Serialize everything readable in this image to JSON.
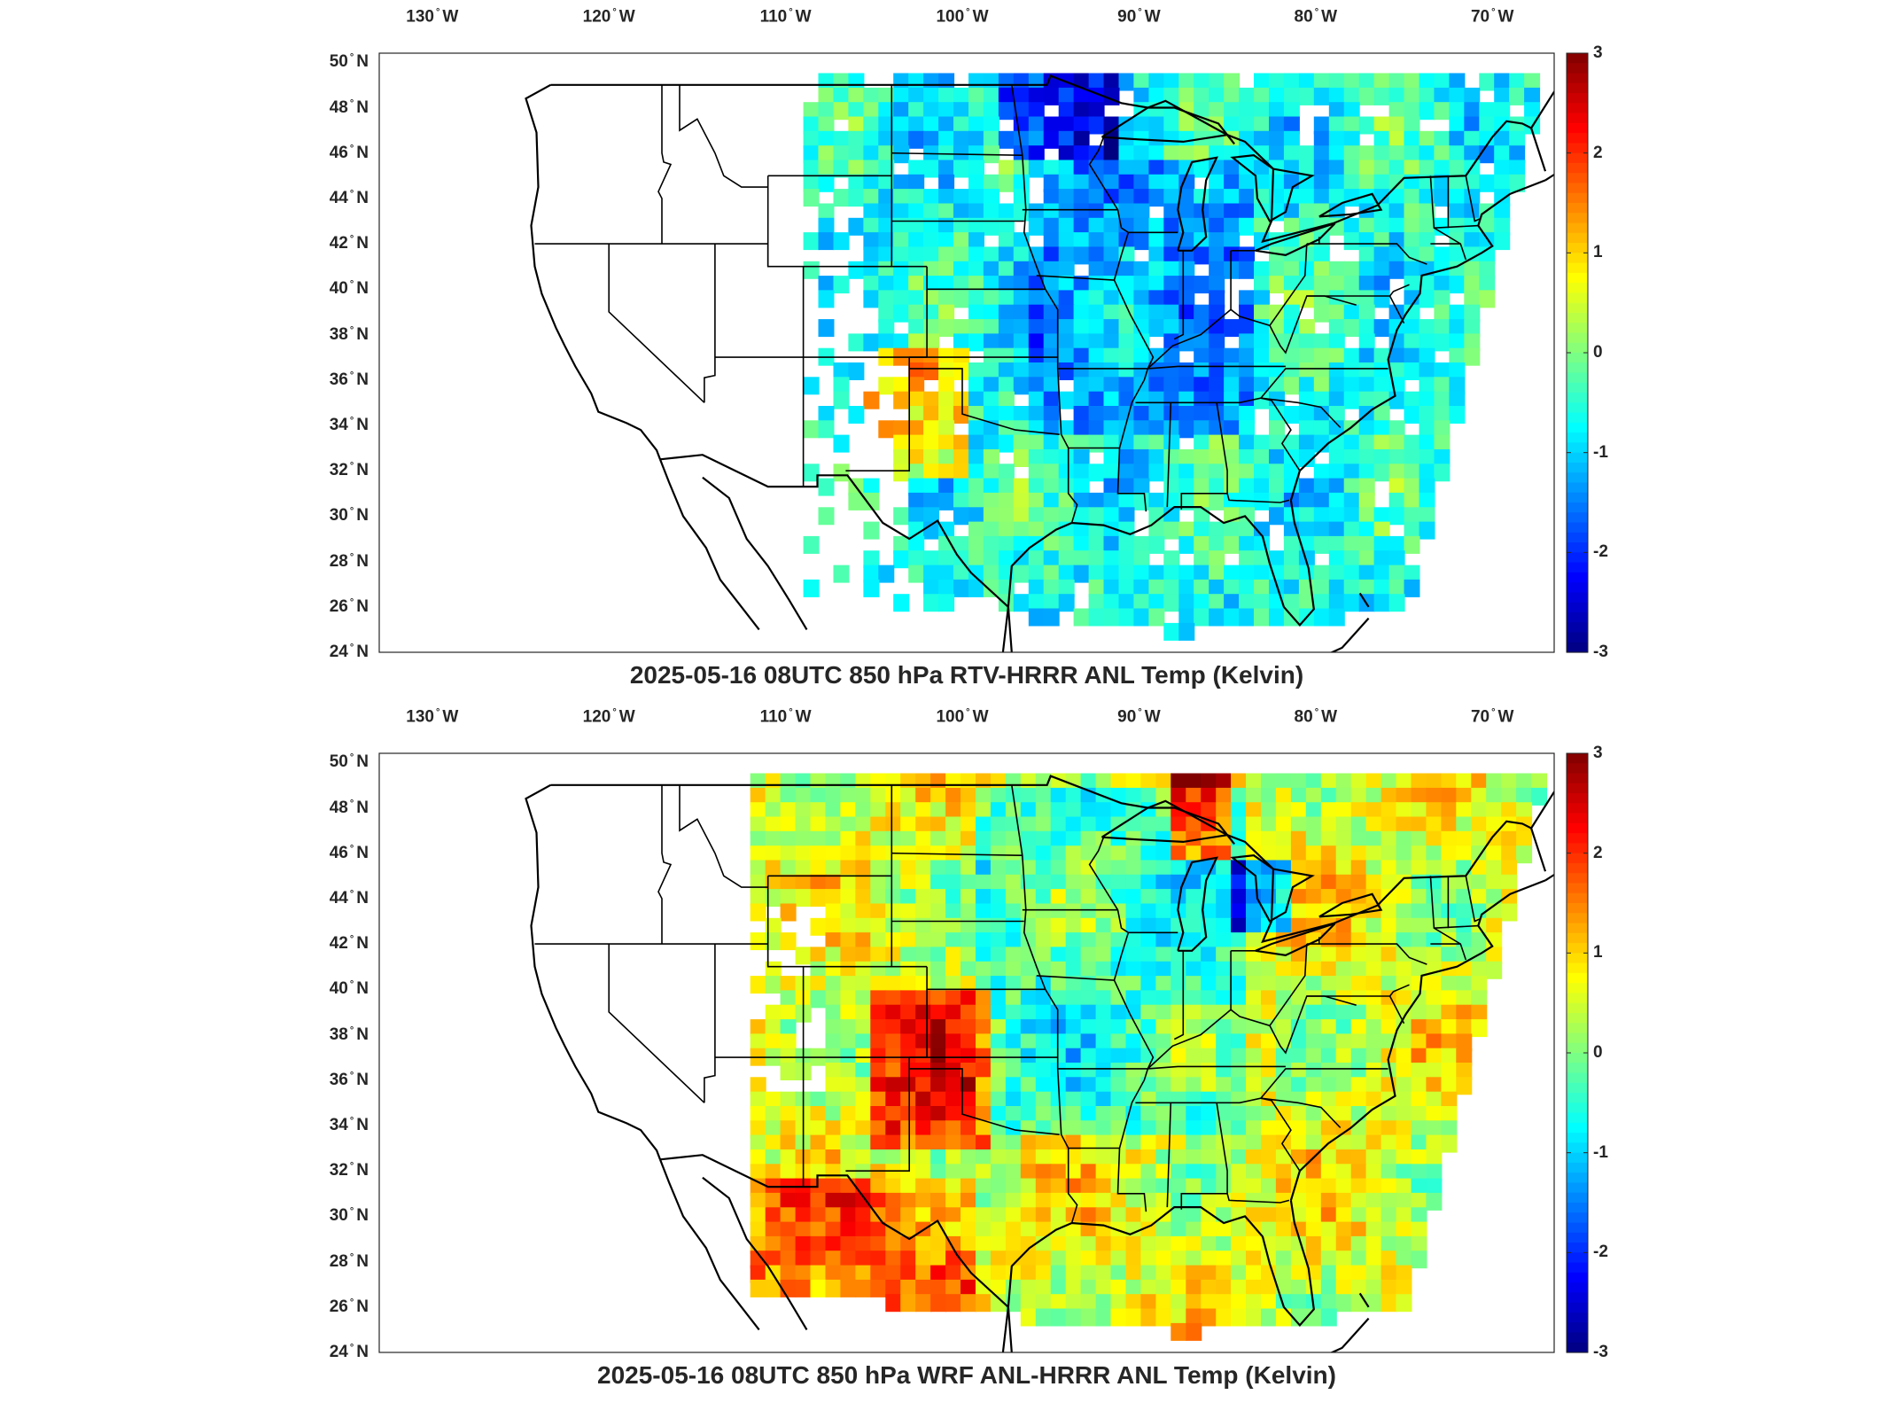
{
  "lon_ticks": [
    {
      "value": 130,
      "label": "130",
      "hemi": "W"
    },
    {
      "value": 120,
      "label": "120",
      "hemi": "W"
    },
    {
      "value": 110,
      "label": "110",
      "hemi": "W"
    },
    {
      "value": 100,
      "label": "100",
      "hemi": "W"
    },
    {
      "value": 90,
      "label": "90",
      "hemi": "W"
    },
    {
      "value": 80,
      "label": "80",
      "hemi": "W"
    },
    {
      "value": 70,
      "label": "70",
      "hemi": "W"
    }
  ],
  "lat_ticks": [
    {
      "value": 50,
      "label": "50",
      "hemi": "N"
    },
    {
      "value": 48,
      "label": "48",
      "hemi": "N"
    },
    {
      "value": 46,
      "label": "46",
      "hemi": "N"
    },
    {
      "value": 44,
      "label": "44",
      "hemi": "N"
    },
    {
      "value": 42,
      "label": "42",
      "hemi": "N"
    },
    {
      "value": 40,
      "label": "40",
      "hemi": "N"
    },
    {
      "value": 38,
      "label": "38",
      "hemi": "N"
    },
    {
      "value": 36,
      "label": "36",
      "hemi": "N"
    },
    {
      "value": 34,
      "label": "34",
      "hemi": "N"
    },
    {
      "value": 32,
      "label": "32",
      "hemi": "N"
    },
    {
      "value": 30,
      "label": "30",
      "hemi": "N"
    },
    {
      "value": 28,
      "label": "28",
      "hemi": "N"
    },
    {
      "value": 26,
      "label": "26",
      "hemi": "N"
    },
    {
      "value": 24,
      "label": "24",
      "hemi": "N"
    }
  ],
  "colorbar": {
    "colormap": "jet",
    "range": [
      -3,
      3
    ],
    "ticks": [
      {
        "value": 3,
        "label": "3"
      },
      {
        "value": 2,
        "label": "2"
      },
      {
        "value": 1,
        "label": "1"
      },
      {
        "value": 0,
        "label": "0"
      },
      {
        "value": -1,
        "label": "-1"
      },
      {
        "value": -2,
        "label": "-2"
      },
      {
        "value": -3,
        "label": "-3"
      }
    ]
  },
  "panels": [
    {
      "title": "2025-05-16 08UTC 850 hPa RTV-HRRR ANL Temp (Kelvin)",
      "coverage": "sparse"
    },
    {
      "title": "2025-05-16 08UTC 850 hPa WRF ANL-HRRR ANL Temp (Kelvin)",
      "coverage": "full"
    }
  ],
  "colors": {
    "land_white": "#ffffff",
    "boundary": "#000000",
    "frame": "#262626"
  }
}
